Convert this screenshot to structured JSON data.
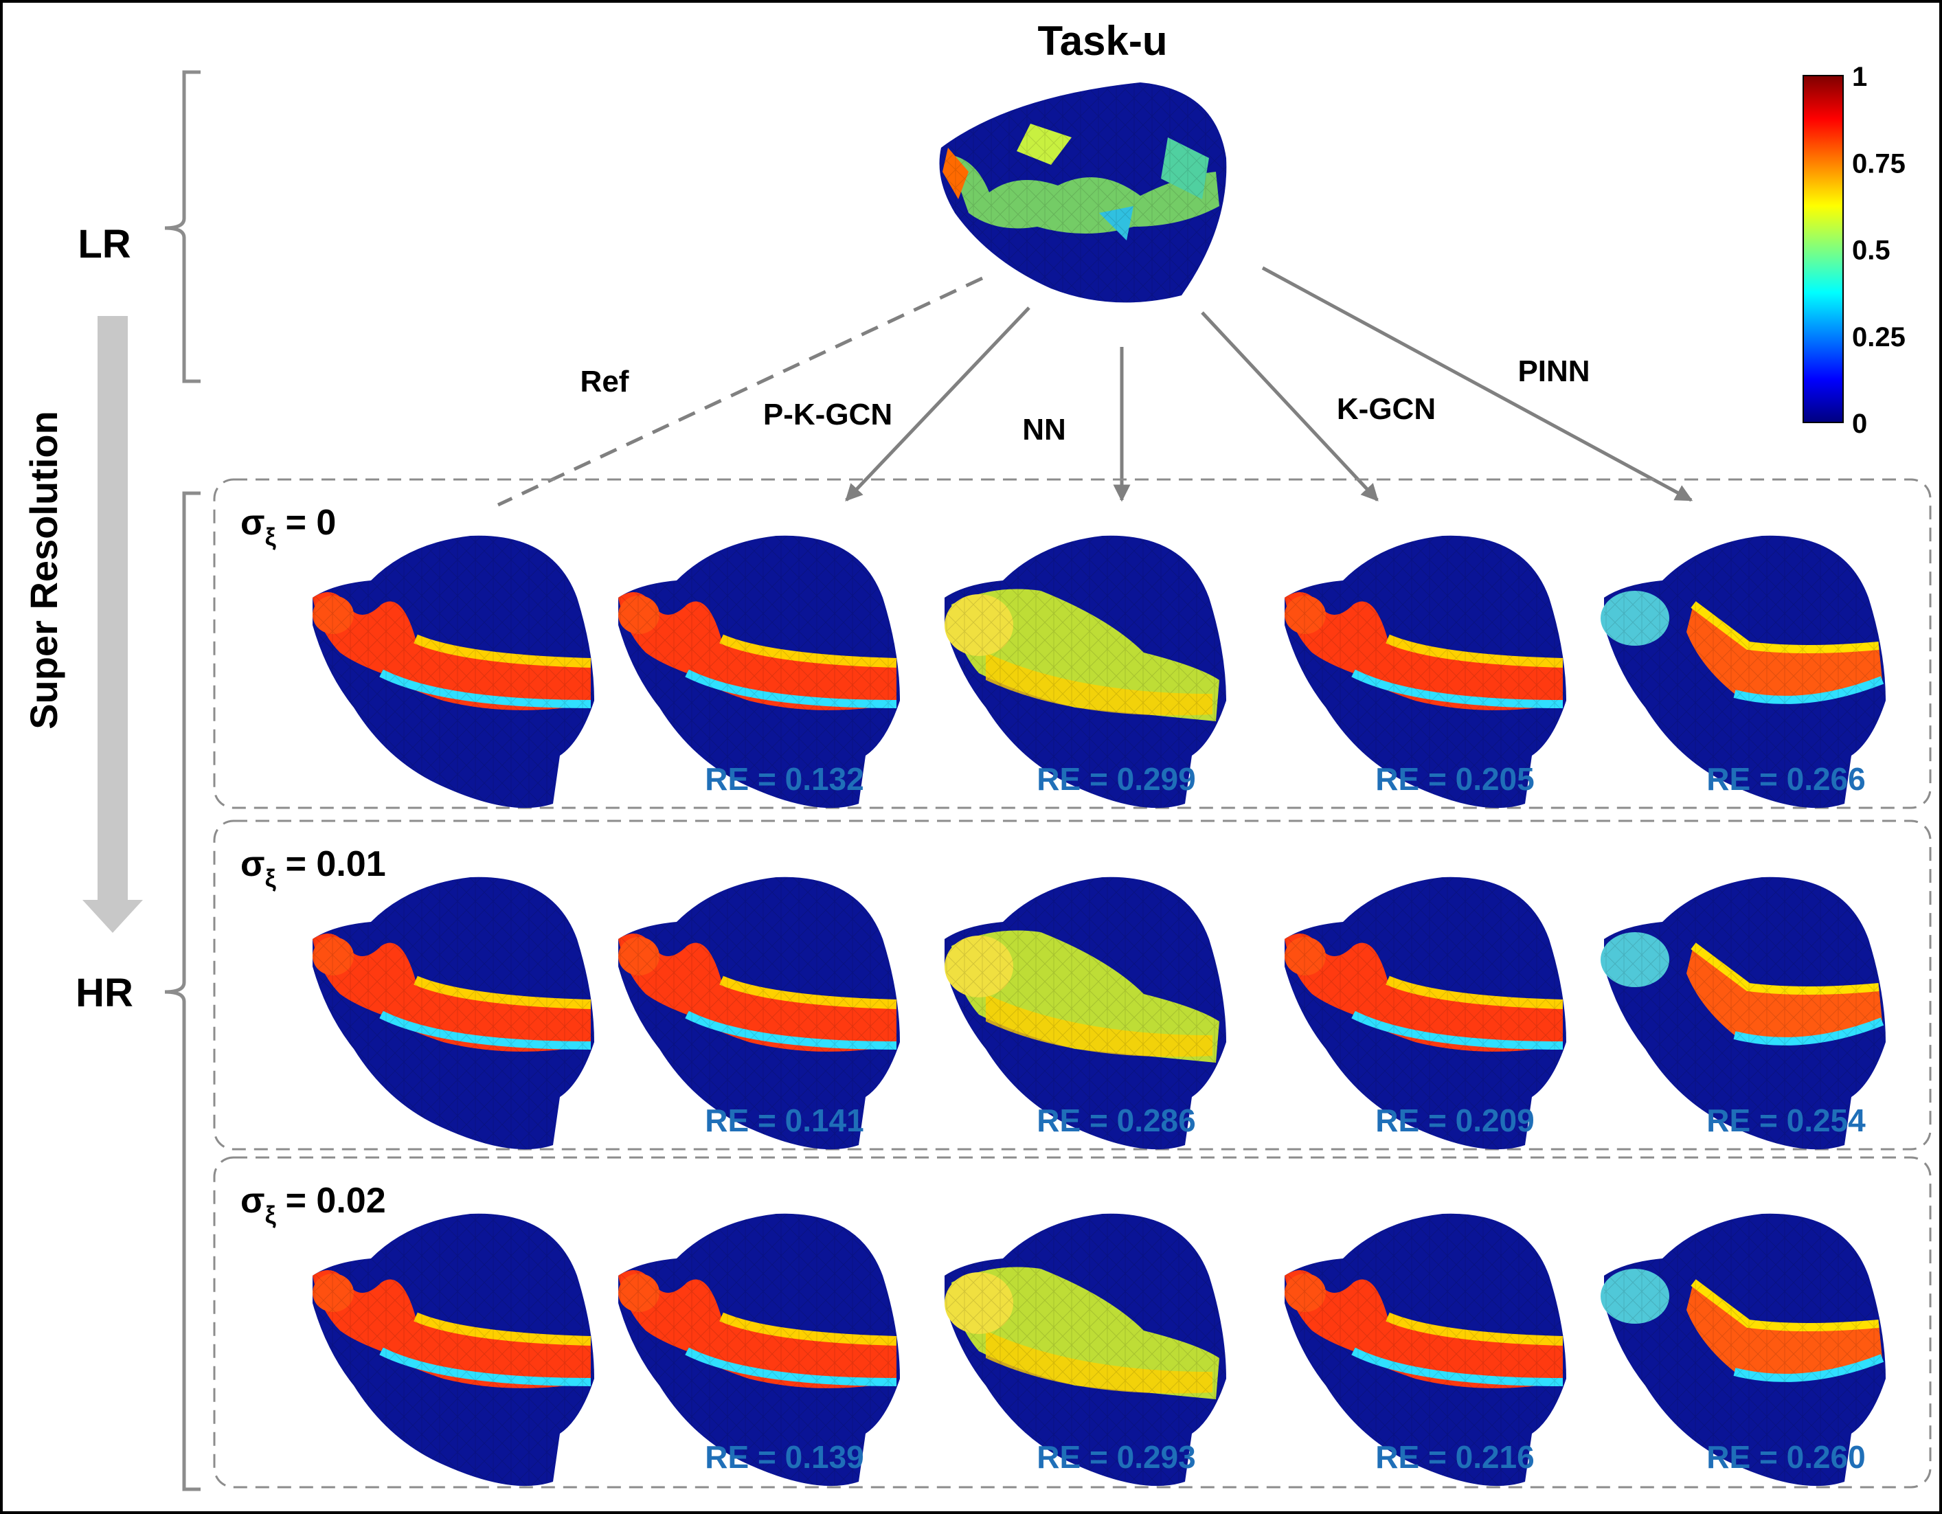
{
  "title": "Task-u",
  "left_labels": {
    "lr": "LR",
    "hr": "HR",
    "process": "Super Resolution"
  },
  "methods": [
    "Ref",
    "P-K-GCN",
    "NN",
    "K-GCN",
    "PINN"
  ],
  "colorbar": {
    "ticks": [
      "1",
      "0.75",
      "0.5",
      "0.25",
      "0"
    ],
    "colormap": "jet",
    "range": [
      0,
      1
    ]
  },
  "rows": [
    {
      "sigma_symbol": "σ",
      "sigma_sub": "ξ",
      "sigma_value": "= 0",
      "re": [
        "RE = 0.132",
        "RE = 0.299",
        "RE = 0.205",
        "RE = 0.266"
      ]
    },
    {
      "sigma_symbol": "σ",
      "sigma_sub": "ξ",
      "sigma_value": "= 0.01",
      "re": [
        "RE = 0.141",
        "RE = 0.286",
        "RE = 0.209",
        "RE = 0.254"
      ]
    },
    {
      "sigma_symbol": "σ",
      "sigma_sub": "ξ",
      "sigma_value": "= 0.02",
      "re": [
        "RE = 0.139",
        "RE = 0.293",
        "RE = 0.216",
        "RE = 0.260"
      ]
    }
  ],
  "colors": {
    "re_text": "#1f6fb8",
    "arrow": "#808080",
    "panel_border": "#8c8c8c",
    "sr_arrow": "#c8c8c8",
    "heart_base": "#0a1496"
  }
}
